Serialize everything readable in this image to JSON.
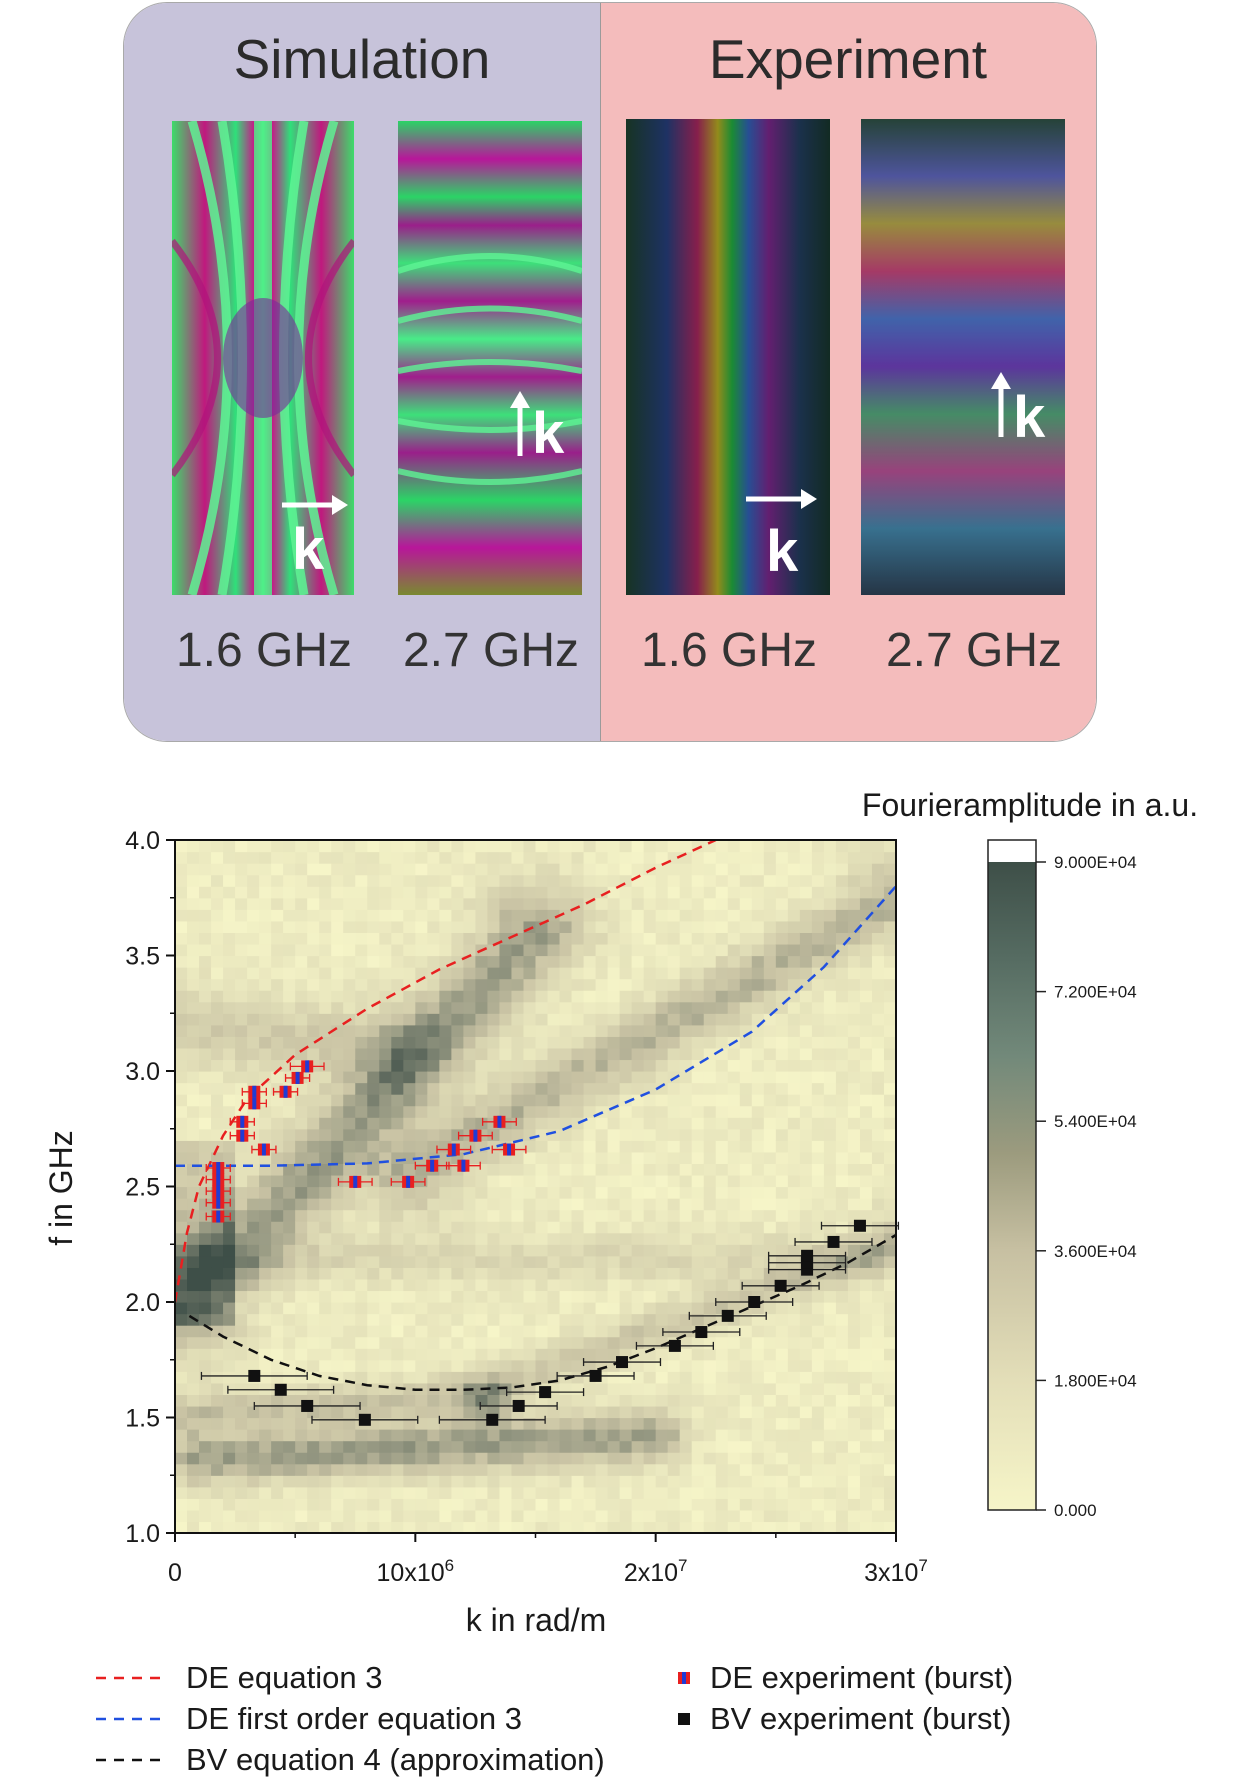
{
  "top_panel": {
    "simulation_title": "Simulation",
    "experiment_title": "Experiment",
    "images": [
      {
        "freq": "1.6 GHz",
        "k_direction": "right",
        "k_label": "k"
      },
      {
        "freq": "2.7 GHz",
        "k_direction": "up",
        "k_label": "k"
      },
      {
        "freq": "1.6 GHz",
        "k_direction": "right",
        "k_label": "k"
      },
      {
        "freq": "2.7 GHz",
        "k_direction": "up",
        "k_label": "k"
      }
    ],
    "colors": {
      "simulation_bg": "#c7c3da",
      "experiment_bg": "#f4bcbc"
    }
  },
  "chart_data": {
    "type": "heatmap",
    "xlabel": "k in rad/m",
    "ylabel": "f in GHz",
    "xlim": [
      0,
      30000000
    ],
    "ylim": [
      1.0,
      4.0
    ],
    "x_ticks": [
      0,
      10000000,
      20000000,
      30000000
    ],
    "x_tick_labels": [
      {
        "base": "0",
        "exp": ""
      },
      {
        "base": "10x10",
        "exp": "6"
      },
      {
        "base": "2x10",
        "exp": "7"
      },
      {
        "base": "3x10",
        "exp": "7"
      }
    ],
    "y_ticks": [
      1.0,
      1.5,
      2.0,
      2.5,
      3.0,
      3.5,
      4.0
    ],
    "y_tick_labels": [
      "1.0",
      "1.5",
      "2.0",
      "2.5",
      "3.0",
      "3.5",
      "4.0"
    ],
    "colorbar": {
      "title": "Fourieramplitude in a.u.",
      "min": 0,
      "max": 90000,
      "tick_values": [
        0,
        18000,
        36000,
        54000,
        72000,
        90000
      ],
      "tick_labels": [
        "0.000",
        "1.800E+04",
        "3.600E+04",
        "5.400E+04",
        "7.200E+04",
        "9.000E+04"
      ],
      "low_color": "#f6f5c8",
      "mid_color": "#c9c3a4",
      "high_color": "#3e4f48",
      "over_color": "#ffffff"
    },
    "series": [
      {
        "name": "DE equation 3",
        "kind": "dashed-line",
        "color": "#e82020",
        "points": [
          [
            0,
            2.0
          ],
          [
            500000,
            2.3
          ],
          [
            1000000,
            2.5
          ],
          [
            2000000,
            2.72
          ],
          [
            3000000,
            2.88
          ],
          [
            5000000,
            3.07
          ],
          [
            8000000,
            3.27
          ],
          [
            11000000,
            3.44
          ],
          [
            14000000,
            3.58
          ],
          [
            17000000,
            3.72
          ],
          [
            20000000,
            3.88
          ],
          [
            22500000,
            4.0
          ]
        ]
      },
      {
        "name": "DE first order equation 3",
        "kind": "dashed-line",
        "color": "#2050e0",
        "points": [
          [
            0,
            2.59
          ],
          [
            4000000,
            2.59
          ],
          [
            8000000,
            2.6
          ],
          [
            12000000,
            2.64
          ],
          [
            16000000,
            2.74
          ],
          [
            20000000,
            2.92
          ],
          [
            24000000,
            3.17
          ],
          [
            27000000,
            3.45
          ],
          [
            30000000,
            3.8
          ]
        ]
      },
      {
        "name": "BV equation 4 (approximation)",
        "kind": "dashed-line",
        "color": "#111111",
        "points": [
          [
            600000,
            1.94
          ],
          [
            2000000,
            1.85
          ],
          [
            4000000,
            1.75
          ],
          [
            6000000,
            1.68
          ],
          [
            8000000,
            1.64
          ],
          [
            10000000,
            1.62
          ],
          [
            12000000,
            1.62
          ],
          [
            14000000,
            1.63
          ],
          [
            16000000,
            1.66
          ],
          [
            18000000,
            1.72
          ],
          [
            20000000,
            1.8
          ],
          [
            22000000,
            1.89
          ],
          [
            24000000,
            1.98
          ],
          [
            26000000,
            2.07
          ],
          [
            28000000,
            2.17
          ],
          [
            30000000,
            2.29
          ]
        ]
      },
      {
        "name": "DE experiment (burst)",
        "kind": "markers",
        "color": "#e82020",
        "alt_color": "#1f3bd6",
        "points": [
          {
            "x": 1800000,
            "y": 2.37,
            "xerr": 500000
          },
          {
            "x": 1800000,
            "y": 2.43,
            "xerr": 500000
          },
          {
            "x": 1800000,
            "y": 2.48,
            "xerr": 500000
          },
          {
            "x": 1800000,
            "y": 2.53,
            "xerr": 500000
          },
          {
            "x": 1800000,
            "y": 2.58,
            "xerr": 500000
          },
          {
            "x": 2800000,
            "y": 2.72,
            "xerr": 500000
          },
          {
            "x": 2800000,
            "y": 2.78,
            "xerr": 500000
          },
          {
            "x": 3300000,
            "y": 2.86,
            "xerr": 500000
          },
          {
            "x": 3300000,
            "y": 2.91,
            "xerr": 500000
          },
          {
            "x": 3700000,
            "y": 2.66,
            "xerr": 500000
          },
          {
            "x": 4600000,
            "y": 2.91,
            "xerr": 500000
          },
          {
            "x": 5100000,
            "y": 2.97,
            "xerr": 500000
          },
          {
            "x": 5500000,
            "y": 3.02,
            "xerr": 700000
          },
          {
            "x": 7500000,
            "y": 2.52,
            "xerr": 700000
          },
          {
            "x": 9700000,
            "y": 2.52,
            "xerr": 700000
          },
          {
            "x": 10700000,
            "y": 2.59,
            "xerr": 700000
          },
          {
            "x": 11600000,
            "y": 2.66,
            "xerr": 700000
          },
          {
            "x": 12000000,
            "y": 2.59,
            "xerr": 700000
          },
          {
            "x": 12500000,
            "y": 2.72,
            "xerr": 700000
          },
          {
            "x": 13500000,
            "y": 2.78,
            "xerr": 700000
          },
          {
            "x": 13900000,
            "y": 2.66,
            "xerr": 700000
          }
        ]
      },
      {
        "name": "BV experiment (burst)",
        "kind": "markers",
        "color": "#111111",
        "points": [
          {
            "x": 3300000,
            "y": 1.68,
            "xerr": 2200000
          },
          {
            "x": 4400000,
            "y": 1.62,
            "xerr": 2200000
          },
          {
            "x": 5500000,
            "y": 1.55,
            "xerr": 2200000
          },
          {
            "x": 7900000,
            "y": 1.49,
            "xerr": 2200000
          },
          {
            "x": 13200000,
            "y": 1.49,
            "xerr": 2200000
          },
          {
            "x": 14300000,
            "y": 1.55,
            "xerr": 1600000
          },
          {
            "x": 15400000,
            "y": 1.61,
            "xerr": 1600000
          },
          {
            "x": 17500000,
            "y": 1.68,
            "xerr": 1600000
          },
          {
            "x": 18600000,
            "y": 1.74,
            "xerr": 1600000
          },
          {
            "x": 20800000,
            "y": 1.81,
            "xerr": 1600000
          },
          {
            "x": 21900000,
            "y": 1.87,
            "xerr": 1600000
          },
          {
            "x": 23000000,
            "y": 1.94,
            "xerr": 1600000
          },
          {
            "x": 24100000,
            "y": 2.0,
            "xerr": 1600000
          },
          {
            "x": 25200000,
            "y": 2.07,
            "xerr": 1600000
          },
          {
            "x": 26300000,
            "y": 2.14,
            "xerr": 1600000
          },
          {
            "x": 26300000,
            "y": 2.17,
            "xerr": 1600000
          },
          {
            "x": 26300000,
            "y": 2.2,
            "xerr": 1600000
          },
          {
            "x": 27400000,
            "y": 2.26,
            "xerr": 1600000
          },
          {
            "x": 28500000,
            "y": 2.33,
            "xerr": 1600000
          }
        ]
      }
    ],
    "heatmap_ridges": [
      {
        "from": [
          600000,
          2.0
        ],
        "to": [
          15000000,
          3.6
        ],
        "width": 0.22,
        "intensity": 0.55
      },
      {
        "from": [
          10000000,
          2.58
        ],
        "to": [
          30000000,
          3.75
        ],
        "width": 0.2,
        "intensity": 0.45
      },
      {
        "from": [
          1000000,
          1.32
        ],
        "to": [
          20000000,
          1.42
        ],
        "width": 0.12,
        "intensity": 0.55
      },
      {
        "from": [
          600000,
          1.52
        ],
        "to": [
          13000000,
          1.6
        ],
        "width": 0.1,
        "intensity": 0.35
      },
      {
        "from": [
          13000000,
          1.62
        ],
        "to": [
          30000000,
          2.25
        ],
        "width": 0.14,
        "intensity": 0.35
      },
      {
        "from": [
          0,
          2.18
        ],
        "to": [
          30000000,
          2.2
        ],
        "width": 0.1,
        "intensity": 0.2
      },
      {
        "from": [
          0,
          3.2
        ],
        "to": [
          9000000,
          3.1
        ],
        "width": 0.2,
        "intensity": 0.3
      }
    ],
    "legend": {
      "placement": "below",
      "items": [
        {
          "label": "DE equation 3",
          "style": "dash",
          "color": "#e82020"
        },
        {
          "label": "DE first order equation 3",
          "style": "dash",
          "color": "#2050e0"
        },
        {
          "label": "BV equation 4 (approximation)",
          "style": "dash",
          "color": "#111111"
        },
        {
          "label": "DE experiment (burst)",
          "style": "marker-split"
        },
        {
          "label": "BV experiment (burst)",
          "style": "marker-black"
        }
      ]
    }
  }
}
